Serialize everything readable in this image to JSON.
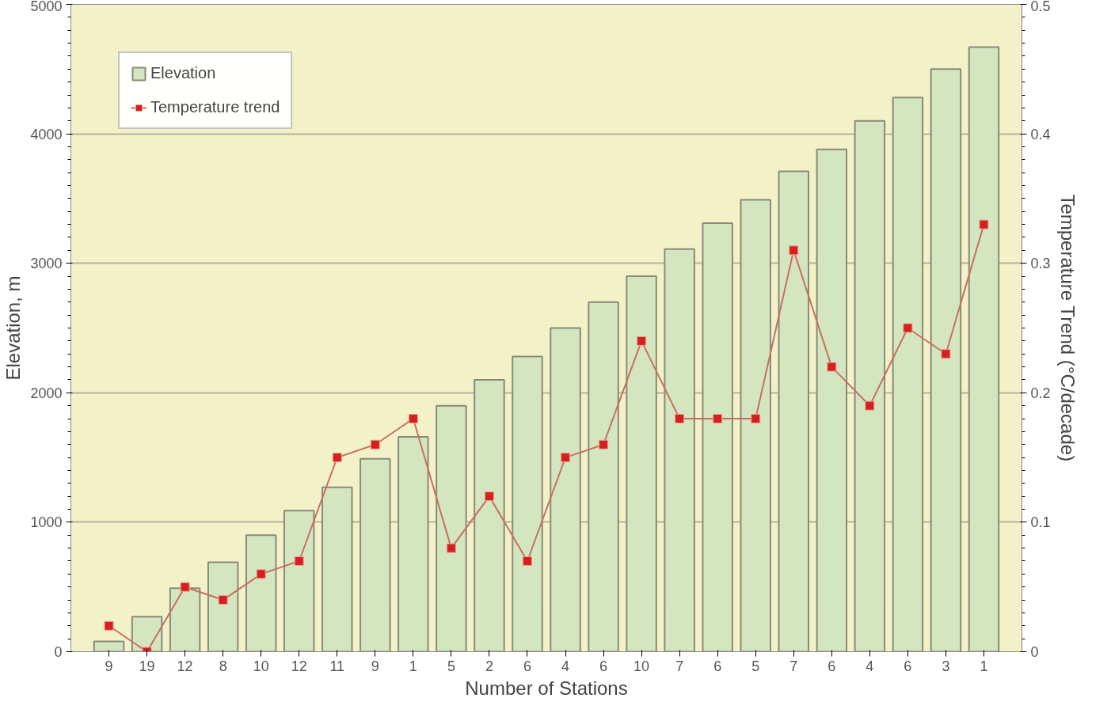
{
  "chart_data": {
    "type": "bar",
    "xlabel": "Number of Stations",
    "ylabel": "Elevation, m",
    "y2label": "Temperature Trend (°C/decade)",
    "categories": [
      "9",
      "19",
      "12",
      "8",
      "10",
      "12",
      "11",
      "9",
      "1",
      "5",
      "2",
      "6",
      "4",
      "6",
      "10",
      "7",
      "6",
      "5",
      "7",
      "6",
      "4",
      "6",
      "3",
      "1"
    ],
    "series": [
      {
        "name": "Elevation",
        "color": "#d3e6c0",
        "values": [
          80,
          270,
          490,
          690,
          900,
          1090,
          1270,
          1490,
          1660,
          1900,
          2100,
          2280,
          2500,
          2700,
          2900,
          3110,
          3310,
          3490,
          3710,
          3880,
          4100,
          4280,
          4500,
          4670
        ]
      },
      {
        "name": "Temperature trend",
        "type": "line",
        "axis": "y2",
        "color": "#c87060",
        "marker": "square",
        "values": [
          0.02,
          0.0,
          0.05,
          0.04,
          0.06,
          0.07,
          0.15,
          0.16,
          0.18,
          0.08,
          0.12,
          0.07,
          0.15,
          0.16,
          0.24,
          0.18,
          0.18,
          0.18,
          0.31,
          0.22,
          0.19,
          0.25,
          0.23,
          0.33
        ]
      }
    ],
    "ylim": [
      0,
      5000
    ],
    "yticks": [
      0,
      1000,
      2000,
      3000,
      4000,
      5000
    ],
    "y2lim": [
      0,
      0.5
    ],
    "y2ticks": [
      0,
      0.1,
      0.2,
      0.3,
      0.4,
      0.5
    ],
    "grid": "y",
    "legend": "top left"
  }
}
